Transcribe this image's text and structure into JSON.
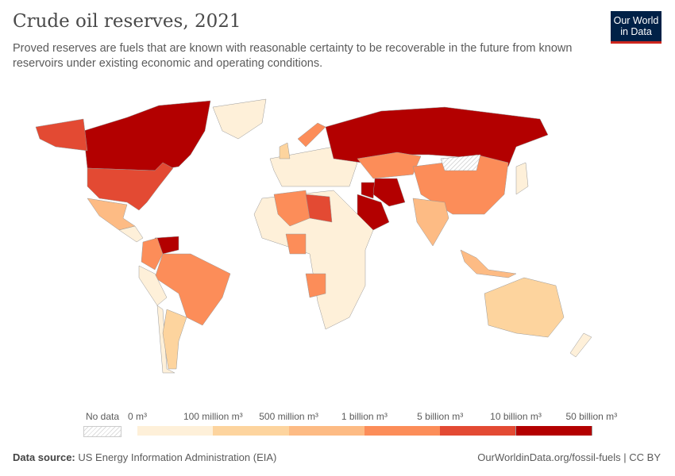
{
  "header": {
    "title": "Crude oil reserves, 2021",
    "subtitle": "Proved reserves are fuels that are known with reasonable certainty to be recoverable in the future from known reservoirs under existing economic and operating conditions.",
    "logo_text": "Our World in Data"
  },
  "legend": {
    "no_data_label": "No data",
    "ticks": [
      "0 m³",
      "100 million m³",
      "500 million m³",
      "1 billion m³",
      "5 billion m³",
      "10 billion m³",
      "50 billion m³"
    ],
    "bin_colors": [
      "#fef0d9",
      "#fdd49e",
      "#fdbb84",
      "#fc8d59",
      "#e34a33",
      "#b30000"
    ]
  },
  "map_data": {
    "bins_by_country": {
      "Canada": 5,
      "Venezuela": 5,
      "Russia": 5,
      "Saudi Arabia": 5,
      "Iran": 5,
      "Iraq": 5,
      "United States": 4,
      "Libya": 4,
      "Brazil": 3,
      "Colombia": 3,
      "Kazakhstan": 3,
      "China": 3,
      "Algeria": 3,
      "Nigeria": 3,
      "Angola": 3,
      "Norway": 3,
      "India": 2,
      "Indonesia": 2,
      "Mexico": 2,
      "Australia": 1,
      "Argentina": 1,
      "United Kingdom": 1,
      "Greenland": 0,
      "Peru": 0,
      "Chile": 0,
      "Africa (other)": 0,
      "Europe (other)": 0,
      "Japan": 0,
      "New Zealand": 0,
      "Central America": 0
    },
    "no_data": [
      "Mongolia"
    ]
  },
  "footer": {
    "source_label": "Data source:",
    "source": "US Energy Information Administration (EIA)",
    "url": "OurWorldinData.org/fossil-fuels | CC BY"
  }
}
